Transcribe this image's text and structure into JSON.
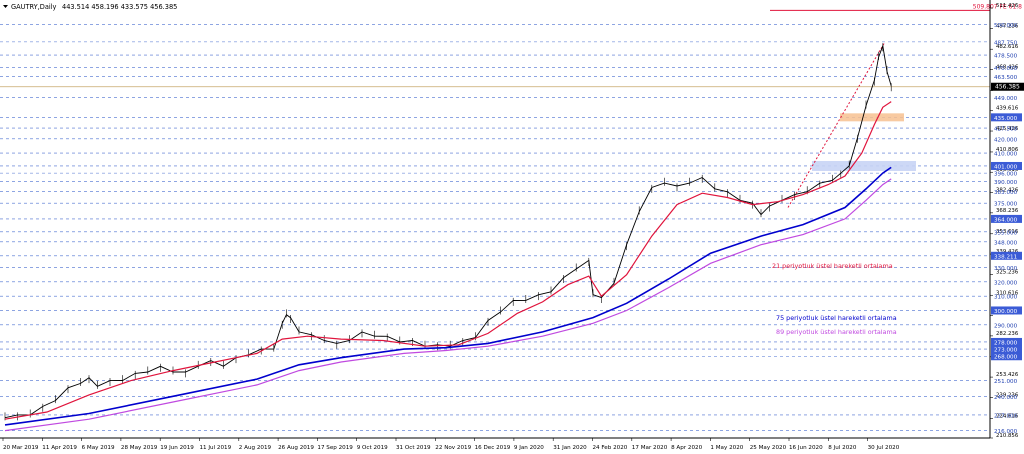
{
  "header": {
    "symbol": "GAUTRY,Daily",
    "ohlc": "443.514 458.196 433.575 456.385"
  },
  "chart_data": {
    "type": "line",
    "title": "GAUTRY,Daily",
    "ylim": [
      210.856,
      511.426
    ],
    "grid": true,
    "current_price": 456.385,
    "fibo_label": "509.807 FE 61.8",
    "fibo_level": 509.807,
    "price_axis_ticks": [
      "511.426",
      "497.236",
      "482.616",
      "468.426",
      "453.806",
      "439.616",
      "425.426",
      "410.806",
      "396.616",
      "382.426",
      "368.236",
      "353.616",
      "339.426",
      "325.236",
      "310.616",
      "296.426",
      "282.236",
      "267.616",
      "253.426",
      "239.236",
      "224.616",
      "210.856"
    ],
    "levels": [
      "500.000",
      "487.750",
      "478.500",
      "470.000",
      "463.500",
      "449.000",
      "435.000",
      "427.500",
      "420.000",
      "410.000",
      "401.000",
      "396.000",
      "390.000",
      "383.000",
      "375.000",
      "364.000",
      "355.000",
      "348.000",
      "338.211",
      "330.000",
      "320.000",
      "310.000",
      "300.000",
      "290.000",
      "278.000",
      "273.000",
      "268.000",
      "251.000",
      "240.000",
      "227.000",
      "216.000"
    ],
    "highlighted_levels": [
      "435.000",
      "401.000",
      "364.000",
      "338.211",
      "300.000",
      "278.000",
      "273.000",
      "268.000"
    ],
    "x_labels": [
      "20 Mar 2019",
      "11 Apr 2019",
      "6 May 2019",
      "28 May 2019",
      "19 Jun 2019",
      "11 Jul 2019",
      "2 Aug 2019",
      "26 Aug 2019",
      "17 Sep 2019",
      "9 Oct 2019",
      "31 Oct 2019",
      "22 Nov 2019",
      "16 Dec 2019",
      "9 Jan 2020",
      "31 Jan 2020",
      "24 Feb 2020",
      "17 Mar 2020",
      "8 Apr 2020",
      "1 May 2020",
      "25 May 2020",
      "16 Jun 2020",
      "8 Jul 2020",
      "30 Jul 2020"
    ],
    "price_path": [
      [
        0,
        226
      ],
      [
        3,
        226
      ],
      [
        6,
        228
      ],
      [
        9,
        232
      ],
      [
        12,
        238
      ],
      [
        15,
        245
      ],
      [
        18,
        250
      ],
      [
        20,
        252
      ],
      [
        22,
        248
      ],
      [
        25,
        250
      ],
      [
        28,
        252
      ],
      [
        31,
        255
      ],
      [
        34,
        258
      ],
      [
        37,
        260
      ],
      [
        40,
        258
      ],
      [
        43,
        256
      ],
      [
        46,
        262
      ],
      [
        49,
        264
      ],
      [
        52,
        262
      ],
      [
        55,
        266
      ],
      [
        58,
        270
      ],
      [
        61,
        272
      ],
      [
        64,
        274
      ],
      [
        66,
        290
      ],
      [
        67,
        298
      ],
      [
        68,
        294
      ],
      [
        70,
        286
      ],
      [
        73,
        282
      ],
      [
        76,
        280
      ],
      [
        79,
        276
      ],
      [
        82,
        280
      ],
      [
        85,
        284
      ],
      [
        88,
        283
      ],
      [
        91,
        281
      ],
      [
        94,
        279
      ],
      [
        97,
        278
      ],
      [
        100,
        276
      ],
      [
        103,
        275
      ],
      [
        106,
        276
      ],
      [
        109,
        278
      ],
      [
        112,
        282
      ],
      [
        115,
        292
      ],
      [
        118,
        300
      ],
      [
        121,
        306
      ],
      [
        124,
        308
      ],
      [
        127,
        310
      ],
      [
        130,
        314
      ],
      [
        133,
        322
      ],
      [
        136,
        330
      ],
      [
        139,
        334
      ],
      [
        140,
        312
      ],
      [
        142,
        308
      ],
      [
        145,
        320
      ],
      [
        148,
        345
      ],
      [
        151,
        370
      ],
      [
        154,
        385
      ],
      [
        157,
        390
      ],
      [
        160,
        386
      ],
      [
        163,
        390
      ],
      [
        166,
        392
      ],
      [
        169,
        386
      ],
      [
        172,
        382
      ],
      [
        175,
        378
      ],
      [
        178,
        374
      ],
      [
        180,
        368
      ],
      [
        182,
        372
      ],
      [
        185,
        378
      ],
      [
        188,
        380
      ],
      [
        191,
        384
      ],
      [
        194,
        388
      ],
      [
        197,
        392
      ],
      [
        199,
        395
      ],
      [
        201,
        402
      ],
      [
        203,
        420
      ],
      [
        205,
        444
      ],
      [
        207,
        460
      ],
      [
        208,
        478
      ],
      [
        209,
        484
      ],
      [
        210,
        468
      ],
      [
        211,
        456
      ]
    ],
    "series": [
      {
        "name": "21 periyotluk üstel hareketli ortalama",
        "color": "#e0143c",
        "values": [
          [
            0,
            224
          ],
          [
            10,
            229
          ],
          [
            20,
            241
          ],
          [
            30,
            251
          ],
          [
            40,
            258
          ],
          [
            50,
            264
          ],
          [
            60,
            270
          ],
          [
            66,
            280
          ],
          [
            72,
            282
          ],
          [
            80,
            280
          ],
          [
            90,
            279
          ],
          [
            100,
            275
          ],
          [
            108,
            276
          ],
          [
            115,
            284
          ],
          [
            122,
            298
          ],
          [
            128,
            306
          ],
          [
            134,
            318
          ],
          [
            139,
            324
          ],
          [
            142,
            310
          ],
          [
            148,
            325
          ],
          [
            154,
            352
          ],
          [
            160,
            374
          ],
          [
            166,
            382
          ],
          [
            172,
            379
          ],
          [
            178,
            374
          ],
          [
            184,
            376
          ],
          [
            190,
            381
          ],
          [
            196,
            388
          ],
          [
            200,
            394
          ],
          [
            204,
            410
          ],
          [
            207,
            430
          ],
          [
            209,
            442
          ],
          [
            211,
            446
          ]
        ]
      },
      {
        "name": "75 periyotluk üstel hareketli ortalama",
        "color": "#0000cd",
        "values": [
          [
            0,
            220
          ],
          [
            20,
            228
          ],
          [
            40,
            240
          ],
          [
            60,
            252
          ],
          [
            70,
            262
          ],
          [
            80,
            267
          ],
          [
            95,
            273
          ],
          [
            105,
            274
          ],
          [
            115,
            277
          ],
          [
            128,
            285
          ],
          [
            140,
            295
          ],
          [
            148,
            305
          ],
          [
            158,
            322
          ],
          [
            168,
            340
          ],
          [
            180,
            352
          ],
          [
            190,
            360
          ],
          [
            200,
            372
          ],
          [
            205,
            385
          ],
          [
            209,
            396
          ],
          [
            211,
            400
          ]
        ]
      },
      {
        "name": "89 periyotluk üstel hareketli ortalama",
        "color": "#c04ae0",
        "values": [
          [
            0,
            216
          ],
          [
            20,
            224
          ],
          [
            40,
            236
          ],
          [
            60,
            248
          ],
          [
            70,
            258
          ],
          [
            80,
            264
          ],
          [
            95,
            270
          ],
          [
            105,
            272
          ],
          [
            115,
            275
          ],
          [
            128,
            282
          ],
          [
            140,
            291
          ],
          [
            148,
            300
          ],
          [
            158,
            316
          ],
          [
            168,
            333
          ],
          [
            180,
            346
          ],
          [
            190,
            353
          ],
          [
            200,
            364
          ],
          [
            205,
            377
          ],
          [
            209,
            388
          ],
          [
            211,
            392
          ]
        ]
      }
    ]
  }
}
